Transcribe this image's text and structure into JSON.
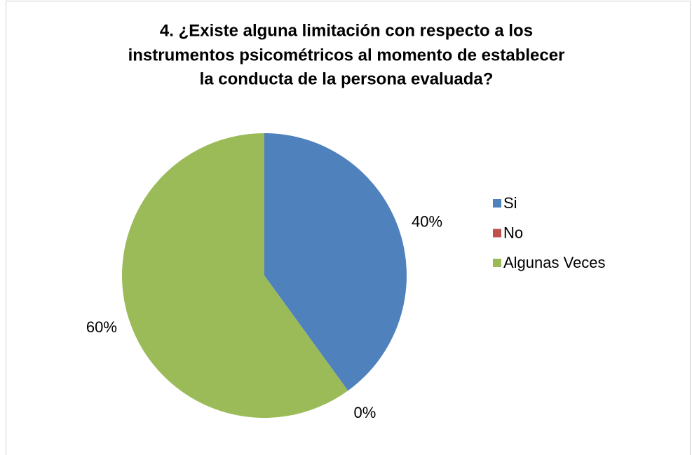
{
  "chart_data": {
    "type": "pie",
    "title": [
      "4. ¿Existe alguna limitación con respecto a los",
      "instrumentos psicométricos al momento de establecer",
      "la conducta de la persona evaluada?"
    ],
    "categories": [
      "Si",
      "No",
      "Algunas Veces"
    ],
    "values": [
      40,
      0,
      60
    ],
    "value_labels": [
      "40%",
      "0%",
      "60%"
    ],
    "colors": [
      "#4f81bd",
      "#c0504d",
      "#9bbb59"
    ],
    "legend": "right"
  }
}
